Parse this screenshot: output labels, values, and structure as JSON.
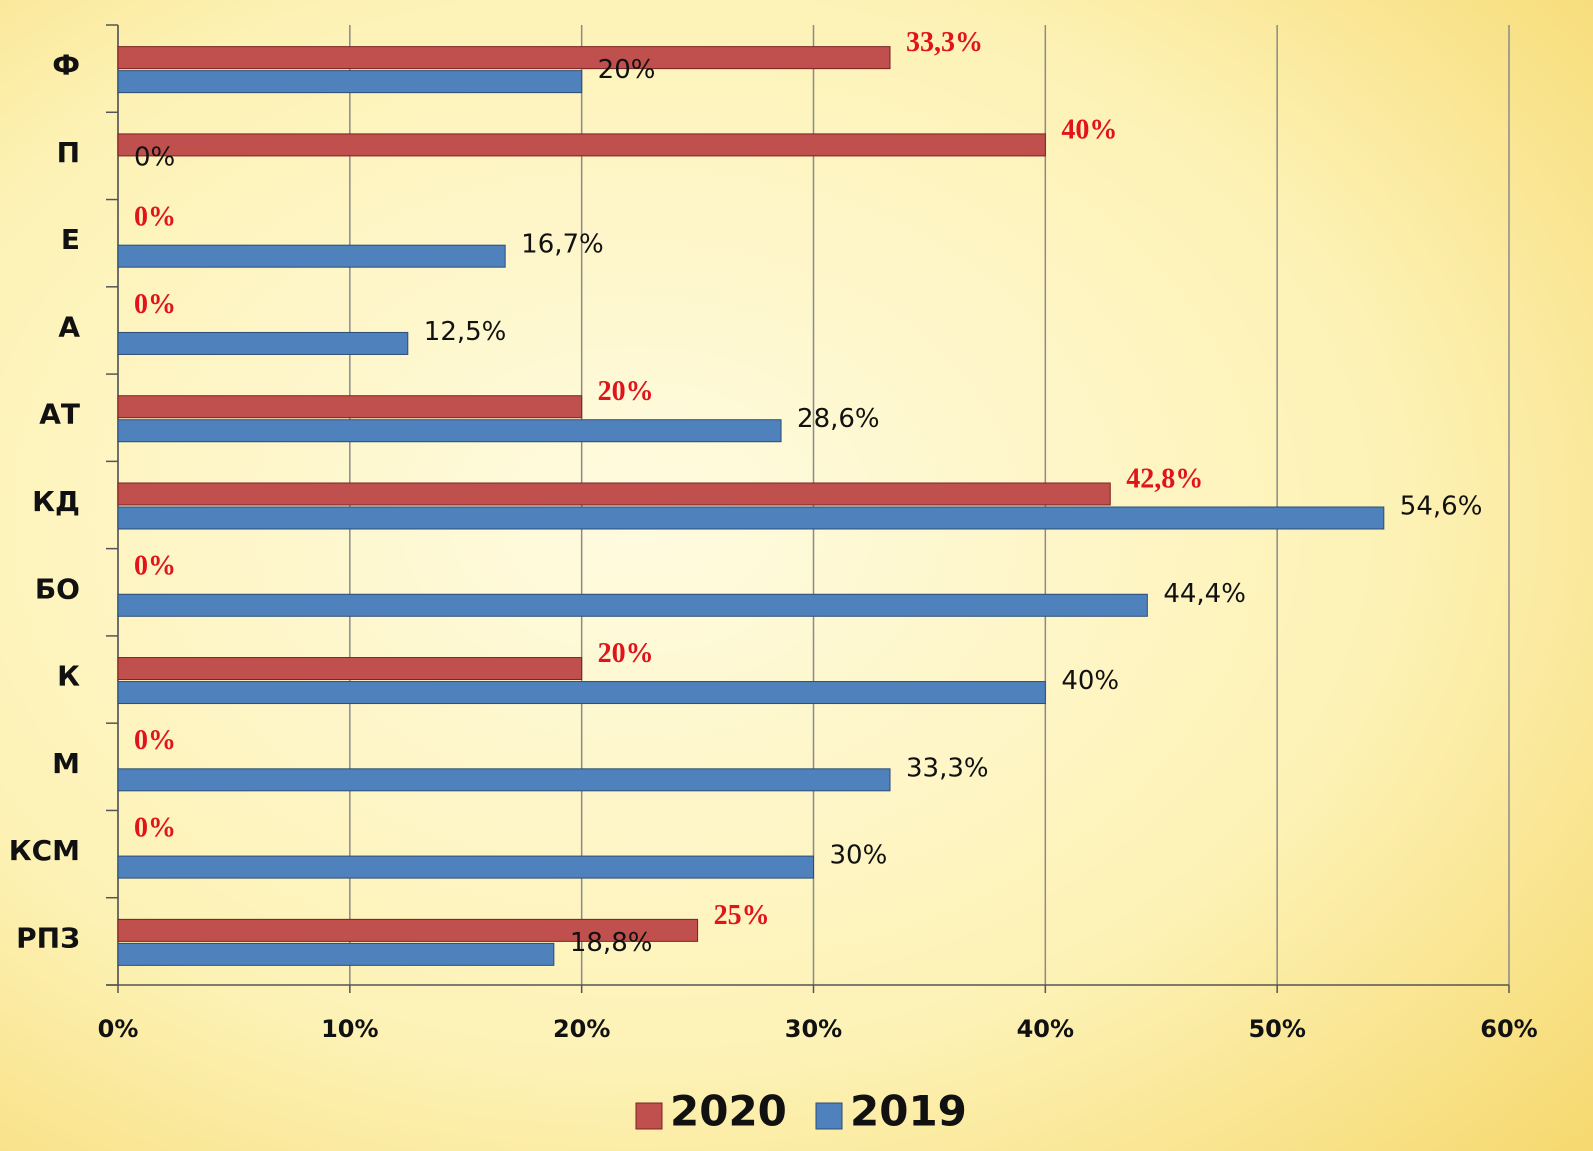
{
  "chart_data": {
    "type": "hbar",
    "categories": [
      "Ф",
      "П",
      "Е",
      "А",
      "АТ",
      "КД",
      "БО",
      "К",
      "М",
      "КСМ",
      "РПЗ"
    ],
    "series": [
      {
        "name": "2020",
        "color": "#c0504d",
        "values": [
          33.3,
          40,
          0,
          0,
          20,
          42.8,
          0,
          20,
          0,
          0,
          25
        ],
        "value_labels": [
          "33,3%",
          "40%",
          "0%",
          "0%",
          "20%",
          "42,8%",
          "0%",
          "20%",
          "0%",
          "0%",
          "25%"
        ]
      },
      {
        "name": "2019",
        "color": "#4f81bd",
        "values": [
          20,
          0,
          16.7,
          12.5,
          28.6,
          54.6,
          44.4,
          40,
          33.3,
          30,
          18.8
        ],
        "value_labels": [
          "20%",
          "0%",
          "16,7%",
          "12,5%",
          "28,6%",
          "54,6%",
          "44,4%",
          "40%",
          "33,3%",
          "30%",
          "18,8%"
        ]
      }
    ],
    "xlim": [
      0,
      60
    ],
    "xticks": [
      {
        "value": 0,
        "label": "0%"
      },
      {
        "value": 10,
        "label": "10%"
      },
      {
        "value": 20,
        "label": "20%"
      },
      {
        "value": 30,
        "label": "30%"
      },
      {
        "value": 40,
        "label": "40%"
      },
      {
        "value": 50,
        "label": "50%"
      },
      {
        "value": 60,
        "label": "60%"
      }
    ],
    "grid": true,
    "legend": "bottom"
  }
}
